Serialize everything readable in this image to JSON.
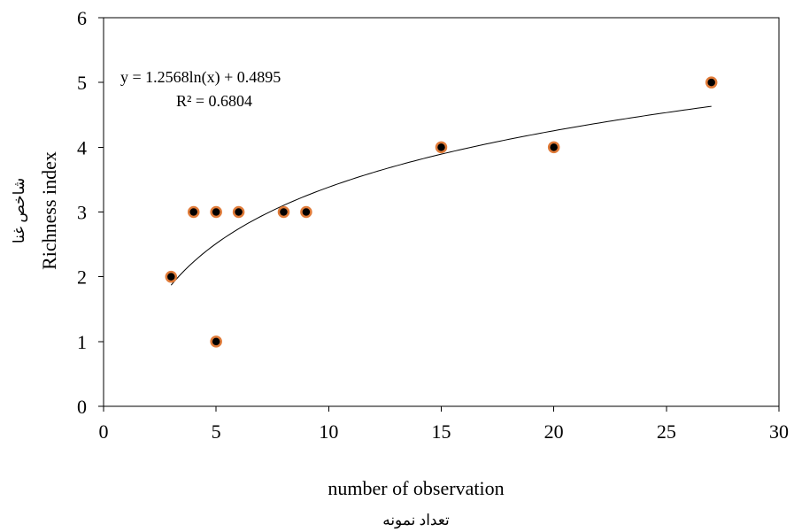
{
  "chart_data": {
    "type": "scatter",
    "xlabel": "number of observation",
    "xlabel_secondary": "تعداد نمونه",
    "ylabel": "Richness index",
    "ylabel_secondary": "شاخص غنا",
    "xlim": [
      0,
      30
    ],
    "ylim": [
      0,
      6
    ],
    "xticks": [
      0,
      5,
      10,
      15,
      20,
      25,
      30
    ],
    "yticks": [
      0,
      1,
      2,
      3,
      4,
      5,
      6
    ],
    "grid": false,
    "legend": "none",
    "marker_fill": "#000000",
    "marker_edge": "#E07B39",
    "points": [
      {
        "x": 3,
        "y": 2
      },
      {
        "x": 4,
        "y": 3
      },
      {
        "x": 5,
        "y": 3
      },
      {
        "x": 5,
        "y": 1
      },
      {
        "x": 6,
        "y": 3
      },
      {
        "x": 8,
        "y": 3
      },
      {
        "x": 9,
        "y": 3
      },
      {
        "x": 15,
        "y": 4
      },
      {
        "x": 20,
        "y": 4
      },
      {
        "x": 27,
        "y": 5
      }
    ],
    "trendline": {
      "type": "logarithmic",
      "a": 1.2568,
      "b": 0.4895,
      "x_range": [
        3,
        27
      ],
      "equation": "y = 1.2568ln(x)  + 0.4895",
      "r_squared": "R² = 0.6804"
    }
  }
}
